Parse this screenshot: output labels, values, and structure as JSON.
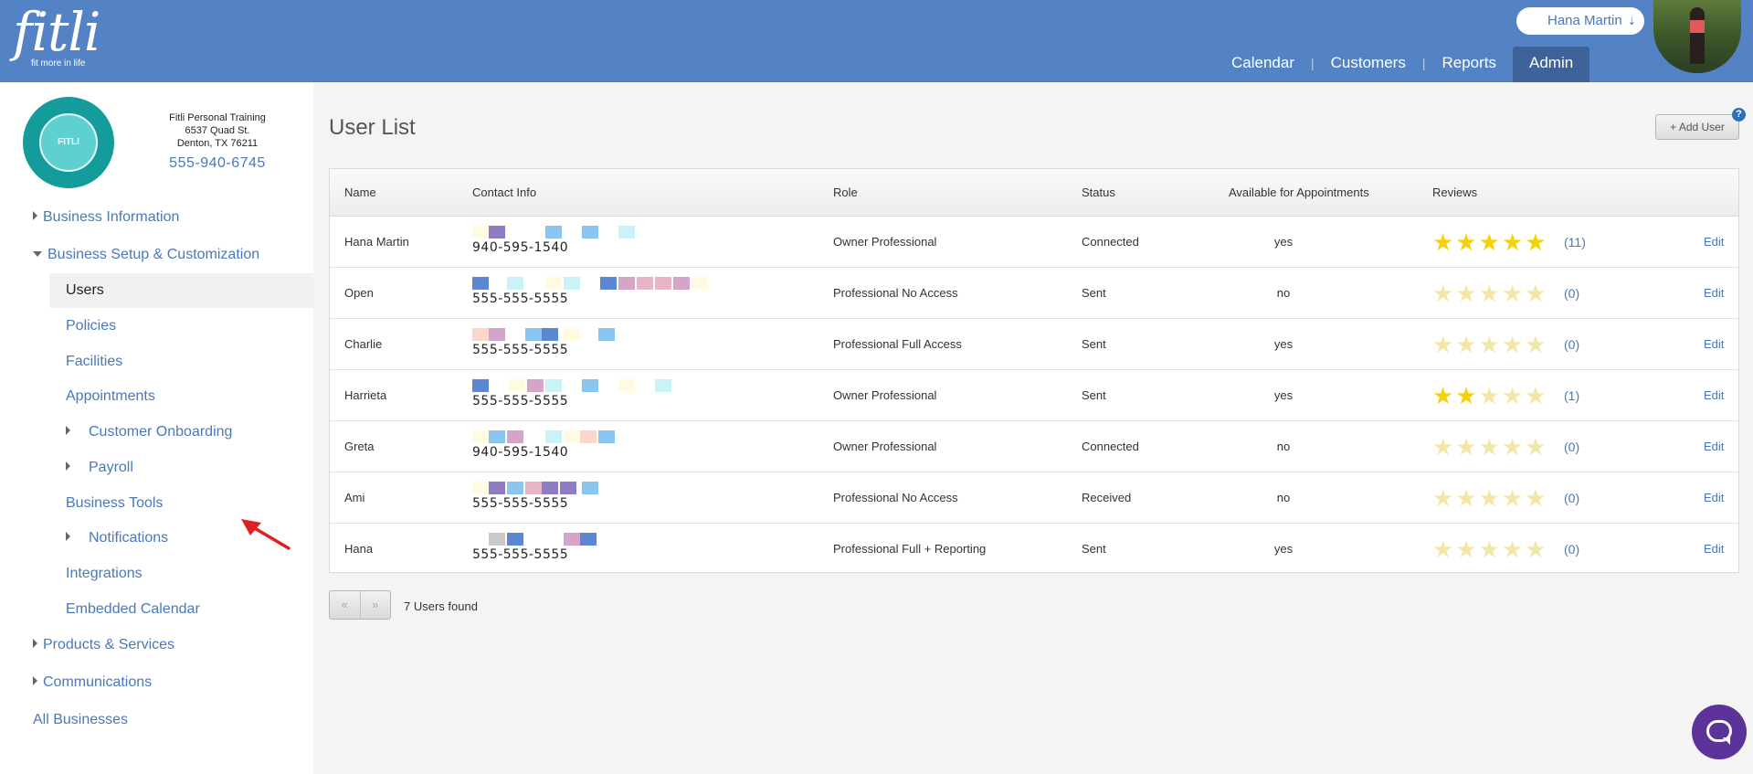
{
  "header": {
    "logo_text": "fitli",
    "logo_tagline": "fit more in life",
    "user_name": "Hana Martin",
    "nav": [
      {
        "label": "Calendar"
      },
      {
        "label": "Customers"
      },
      {
        "label": "Reports"
      },
      {
        "label": "Admin",
        "active": true
      }
    ]
  },
  "business": {
    "logo_text": "FITLI",
    "name": "Fitli Personal Training",
    "address1": "6537 Quad St.",
    "address2": "Denton, TX 76211",
    "phone": "555-940-6745"
  },
  "sidebar": {
    "items": [
      {
        "label": "Business Information"
      },
      {
        "label": "Business Setup & Customization"
      },
      {
        "label": "Users"
      },
      {
        "label": "Policies"
      },
      {
        "label": "Facilities"
      },
      {
        "label": "Appointments"
      },
      {
        "label": "Customer Onboarding"
      },
      {
        "label": "Payroll"
      },
      {
        "label": "Business Tools"
      },
      {
        "label": "Notifications"
      },
      {
        "label": "Integrations"
      },
      {
        "label": "Embedded Calendar"
      },
      {
        "label": "Products & Services"
      },
      {
        "label": "Communications"
      },
      {
        "label": "All Businesses"
      }
    ]
  },
  "main": {
    "title": "User List",
    "add_user_label": "+ Add User",
    "help_label": "?",
    "columns": {
      "name": "Name",
      "contact": "Contact Info",
      "role": "Role",
      "status": "Status",
      "available": "Available for Appointments",
      "reviews": "Reviews"
    },
    "edit_label": "Edit",
    "rows": [
      {
        "name": "Hana Martin",
        "phone": "940-595-1540",
        "role": "Owner Professional",
        "status": "Connected",
        "available": "yes",
        "stars": "★★★★★",
        "review_count": "(11)",
        "rating": 5
      },
      {
        "name": "Open",
        "phone": "555-555-5555",
        "role": "Professional No Access",
        "status": "Sent",
        "available": "no",
        "stars": "★★★★★",
        "review_count": "(0)",
        "rating": 0
      },
      {
        "name": "Charlie",
        "phone": "555-555-5555",
        "role": "Professional Full Access",
        "status": "Sent",
        "available": "yes",
        "stars": "★★★★★",
        "review_count": "(0)",
        "rating": 0
      },
      {
        "name": "Harrieta",
        "phone": "555-555-5555",
        "role": "Owner Professional",
        "status": "Sent",
        "available": "yes",
        "stars": "★★★★★",
        "review_count": "(1)",
        "rating": 2
      },
      {
        "name": "Greta",
        "phone": "940-595-1540",
        "role": "Owner Professional",
        "status": "Connected",
        "available": "no",
        "stars": "★★★★★",
        "review_count": "(0)",
        "rating": 0
      },
      {
        "name": "Ami",
        "phone": "555-555-5555",
        "role": "Professional No Access",
        "status": "Received",
        "available": "no",
        "stars": "★★★★★",
        "review_count": "(0)",
        "rating": 0
      },
      {
        "name": "Hana",
        "phone": "555-555-5555",
        "role": "Professional Full + Reporting",
        "status": "Sent",
        "available": "yes",
        "stars": "★★★★★",
        "review_count": "(0)",
        "rating": 0
      }
    ],
    "pager_prev": "«",
    "pager_next": "»",
    "found_text": "7 Users found"
  },
  "colors": {
    "header_bg": "#5383c4",
    "link": "#4a78b8",
    "star_on": "#f5d10a",
    "star_off": "#f3e7a8",
    "chat": "#5b3399"
  }
}
